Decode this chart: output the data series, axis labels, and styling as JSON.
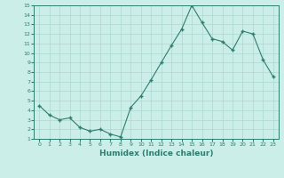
{
  "x": [
    0,
    1,
    2,
    3,
    4,
    5,
    6,
    7,
    8,
    9,
    10,
    11,
    12,
    13,
    14,
    15,
    16,
    17,
    18,
    19,
    20,
    21,
    22,
    23
  ],
  "y": [
    4.5,
    3.5,
    3.0,
    3.2,
    2.2,
    1.8,
    2.0,
    1.5,
    1.2,
    4.3,
    5.5,
    7.2,
    9.0,
    10.8,
    12.5,
    15.0,
    13.2,
    11.5,
    11.2,
    10.3,
    12.3,
    12.0,
    9.3,
    7.5
  ],
  "xlabel": "Humidex (Indice chaleur)",
  "xlim": [
    -0.5,
    23.5
  ],
  "ylim": [
    1,
    15
  ],
  "yticks": [
    1,
    2,
    3,
    4,
    5,
    6,
    7,
    8,
    9,
    10,
    11,
    12,
    13,
    14,
    15
  ],
  "xticks": [
    0,
    1,
    2,
    3,
    4,
    5,
    6,
    7,
    8,
    9,
    10,
    11,
    12,
    13,
    14,
    15,
    16,
    17,
    18,
    19,
    20,
    21,
    22,
    23
  ],
  "line_color": "#2e7d6e",
  "bg_color": "#cceee8",
  "grid_color": "#aad8d0"
}
